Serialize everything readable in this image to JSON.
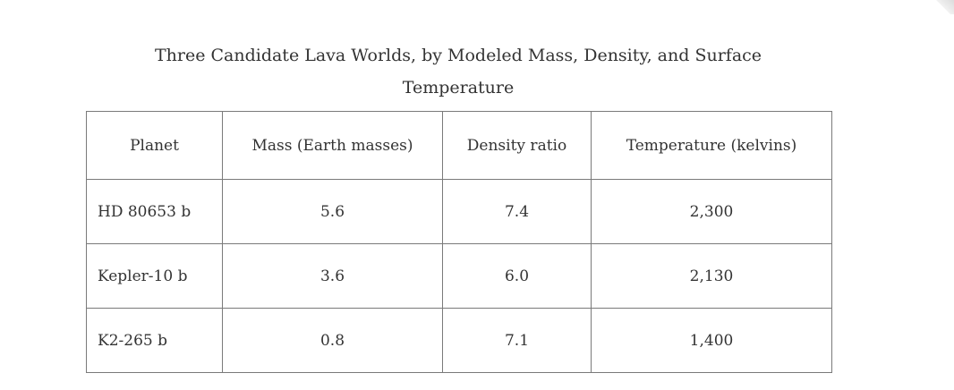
{
  "caption_line1": "Three Candidate Lava Worlds, by Modeled Mass, Density, and Surface",
  "caption_line2": "Temperature",
  "table": {
    "headers": [
      "Planet",
      "Mass (Earth masses)",
      "Density ratio",
      "Temperature (kelvins)"
    ],
    "rows": [
      [
        "HD 80653 b",
        "5.6",
        "7.4",
        "2,300"
      ],
      [
        "Kepler-10 b",
        "3.6",
        "6.0",
        "2,130"
      ],
      [
        "K2-265 b",
        "0.8",
        "7.1",
        "1,400"
      ]
    ]
  }
}
